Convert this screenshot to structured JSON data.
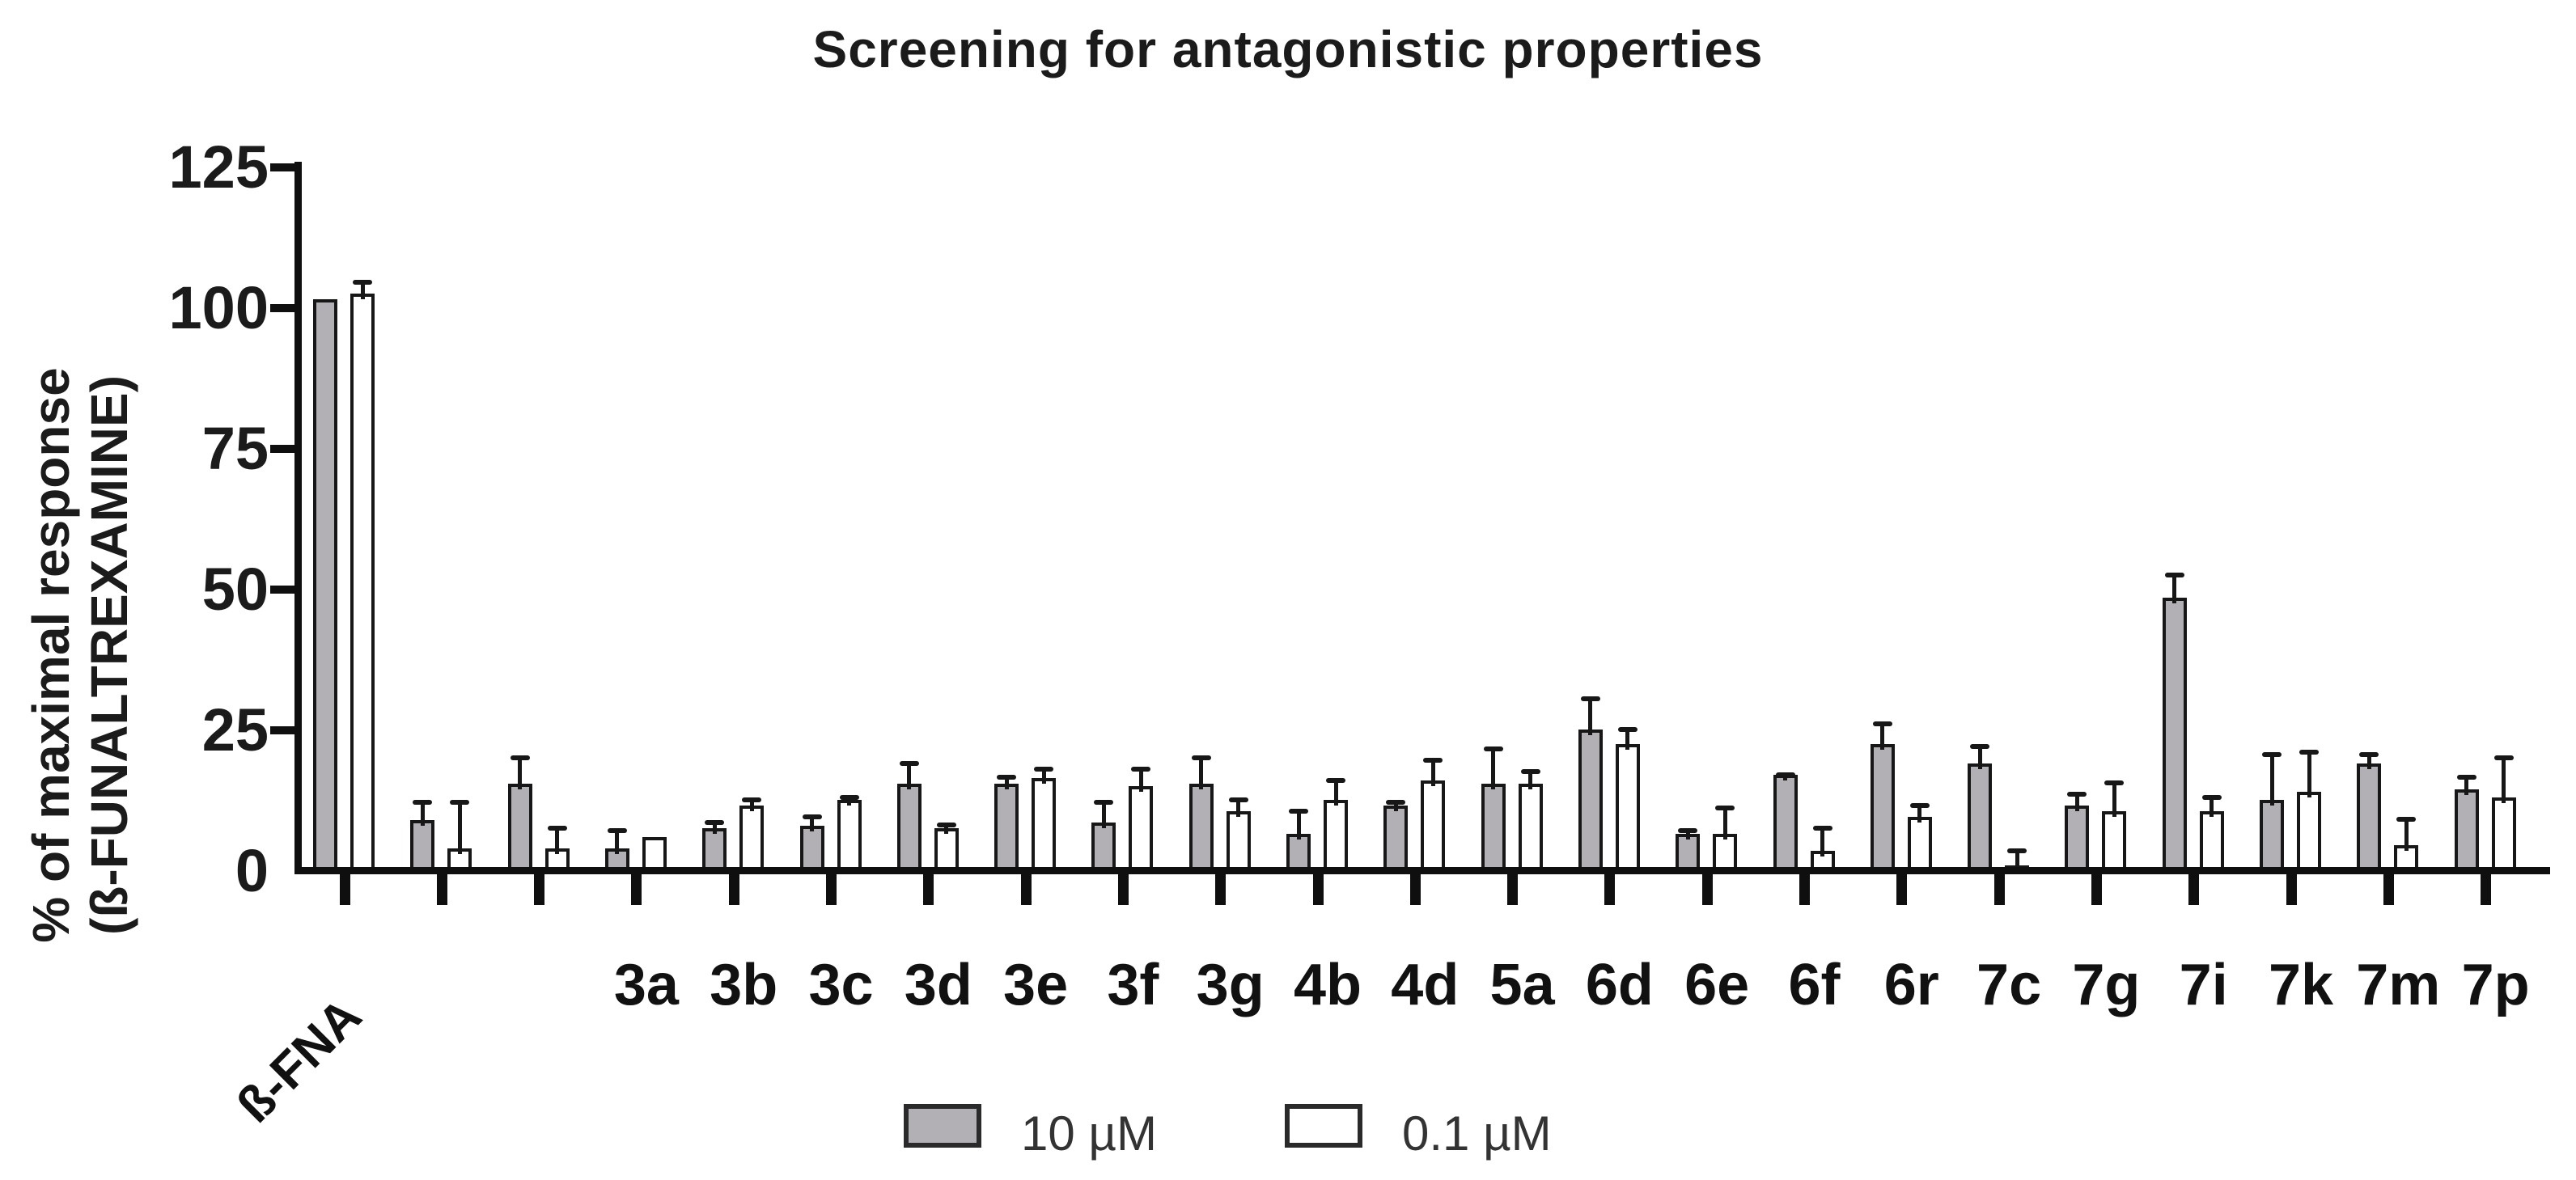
{
  "colors": {
    "bar_gray_fill": "#b2b0b5",
    "bar_white_fill": "#ffffff",
    "bar_outline": "#171717",
    "axis": "#0f0f0f",
    "text": "#1b1b1b",
    "legend_text": "#333333",
    "background": "#ffffff"
  },
  "chart_data": {
    "type": "bar",
    "title": "Screening for antagonistic properties",
    "ylabel_line1": "% of maximal response",
    "ylabel_line2": "(ß-FUNALTREXAMINE)",
    "xlabel": "",
    "ylim": [
      0,
      125
    ],
    "yticks": [
      0,
      25,
      50,
      75,
      100,
      125
    ],
    "grid": false,
    "legend_position": "bottom-center",
    "legend": [
      {
        "label": "10 µM",
        "fill": "#b2b0b5"
      },
      {
        "label": "0.1 µM",
        "fill": "#ffffff"
      }
    ],
    "series_note": "values are % of maximal response; err = upper SEM whisker",
    "series": [
      {
        "name": "10 µM",
        "key": "v10"
      },
      {
        "name": "0.1 µM",
        "key": "v01"
      }
    ],
    "groups": [
      {
        "label": "ß-FNA",
        "rotated": true,
        "v10": 101,
        "e10": 0,
        "v01": 102,
        "e01": 2.5
      },
      {
        "label": "",
        "rotated": false,
        "v10": 8.5,
        "e10": 3.5,
        "v01": 3.5,
        "e01": 8.5
      },
      {
        "label": "",
        "rotated": false,
        "v10": 15,
        "e10": 5,
        "v01": 3.5,
        "e01": 4
      },
      {
        "label": "3a",
        "rotated": false,
        "v10": 3.5,
        "e10": 3.5,
        "v01": 5.5,
        "e01": 0
      },
      {
        "label": "3b",
        "rotated": false,
        "v10": 7,
        "e10": 1.5,
        "v01": 11,
        "e01": 1.5
      },
      {
        "label": "3c",
        "rotated": false,
        "v10": 7.5,
        "e10": 2,
        "v01": 12,
        "e01": 1
      },
      {
        "label": "3d",
        "rotated": false,
        "v10": 15,
        "e10": 4,
        "v01": 7,
        "e01": 1
      },
      {
        "label": "3e",
        "rotated": false,
        "v10": 15,
        "e10": 1.5,
        "v01": 16,
        "e01": 2
      },
      {
        "label": "3f",
        "rotated": false,
        "v10": 8,
        "e10": 4,
        "v01": 14.5,
        "e01": 3.5
      },
      {
        "label": "3g",
        "rotated": false,
        "v10": 15,
        "e10": 5,
        "v01": 10,
        "e01": 2.5
      },
      {
        "label": "4b",
        "rotated": false,
        "v10": 6,
        "e10": 4.5,
        "v01": 12,
        "e01": 4
      },
      {
        "label": "4d",
        "rotated": false,
        "v10": 11,
        "e10": 1,
        "v01": 15.5,
        "e01": 4
      },
      {
        "label": "5a",
        "rotated": false,
        "v10": 15,
        "e10": 6.5,
        "v01": 15,
        "e01": 2.5
      },
      {
        "label": "6d",
        "rotated": false,
        "v10": 24.5,
        "e10": 6,
        "v01": 22,
        "e01": 3
      },
      {
        "label": "6e",
        "rotated": false,
        "v10": 6,
        "e10": 1,
        "v01": 6,
        "e01": 5
      },
      {
        "label": "6f",
        "rotated": false,
        "v10": 16.5,
        "e10": 0.5,
        "v01": 3,
        "e01": 4.5
      },
      {
        "label": "6r",
        "rotated": false,
        "v10": 22,
        "e10": 4,
        "v01": 9,
        "e01": 2.5
      },
      {
        "label": "7c",
        "rotated": false,
        "v10": 18.5,
        "e10": 3.5,
        "v01": 0.5,
        "e01": 3
      },
      {
        "label": "7g",
        "rotated": false,
        "v10": 11,
        "e10": 2.5,
        "v01": 10,
        "e01": 5.5
      },
      {
        "label": "7i",
        "rotated": false,
        "v10": 48,
        "e10": 4.5,
        "v01": 10,
        "e01": 3
      },
      {
        "label": "7k",
        "rotated": false,
        "v10": 12,
        "e10": 8.5,
        "v01": 13.5,
        "e01": 7.5
      },
      {
        "label": "7m",
        "rotated": false,
        "v10": 18.5,
        "e10": 2,
        "v01": 4,
        "e01": 5
      },
      {
        "label": "7p",
        "rotated": false,
        "v10": 14,
        "e10": 2.5,
        "v01": 12.5,
        "e01": 7.5
      }
    ]
  }
}
